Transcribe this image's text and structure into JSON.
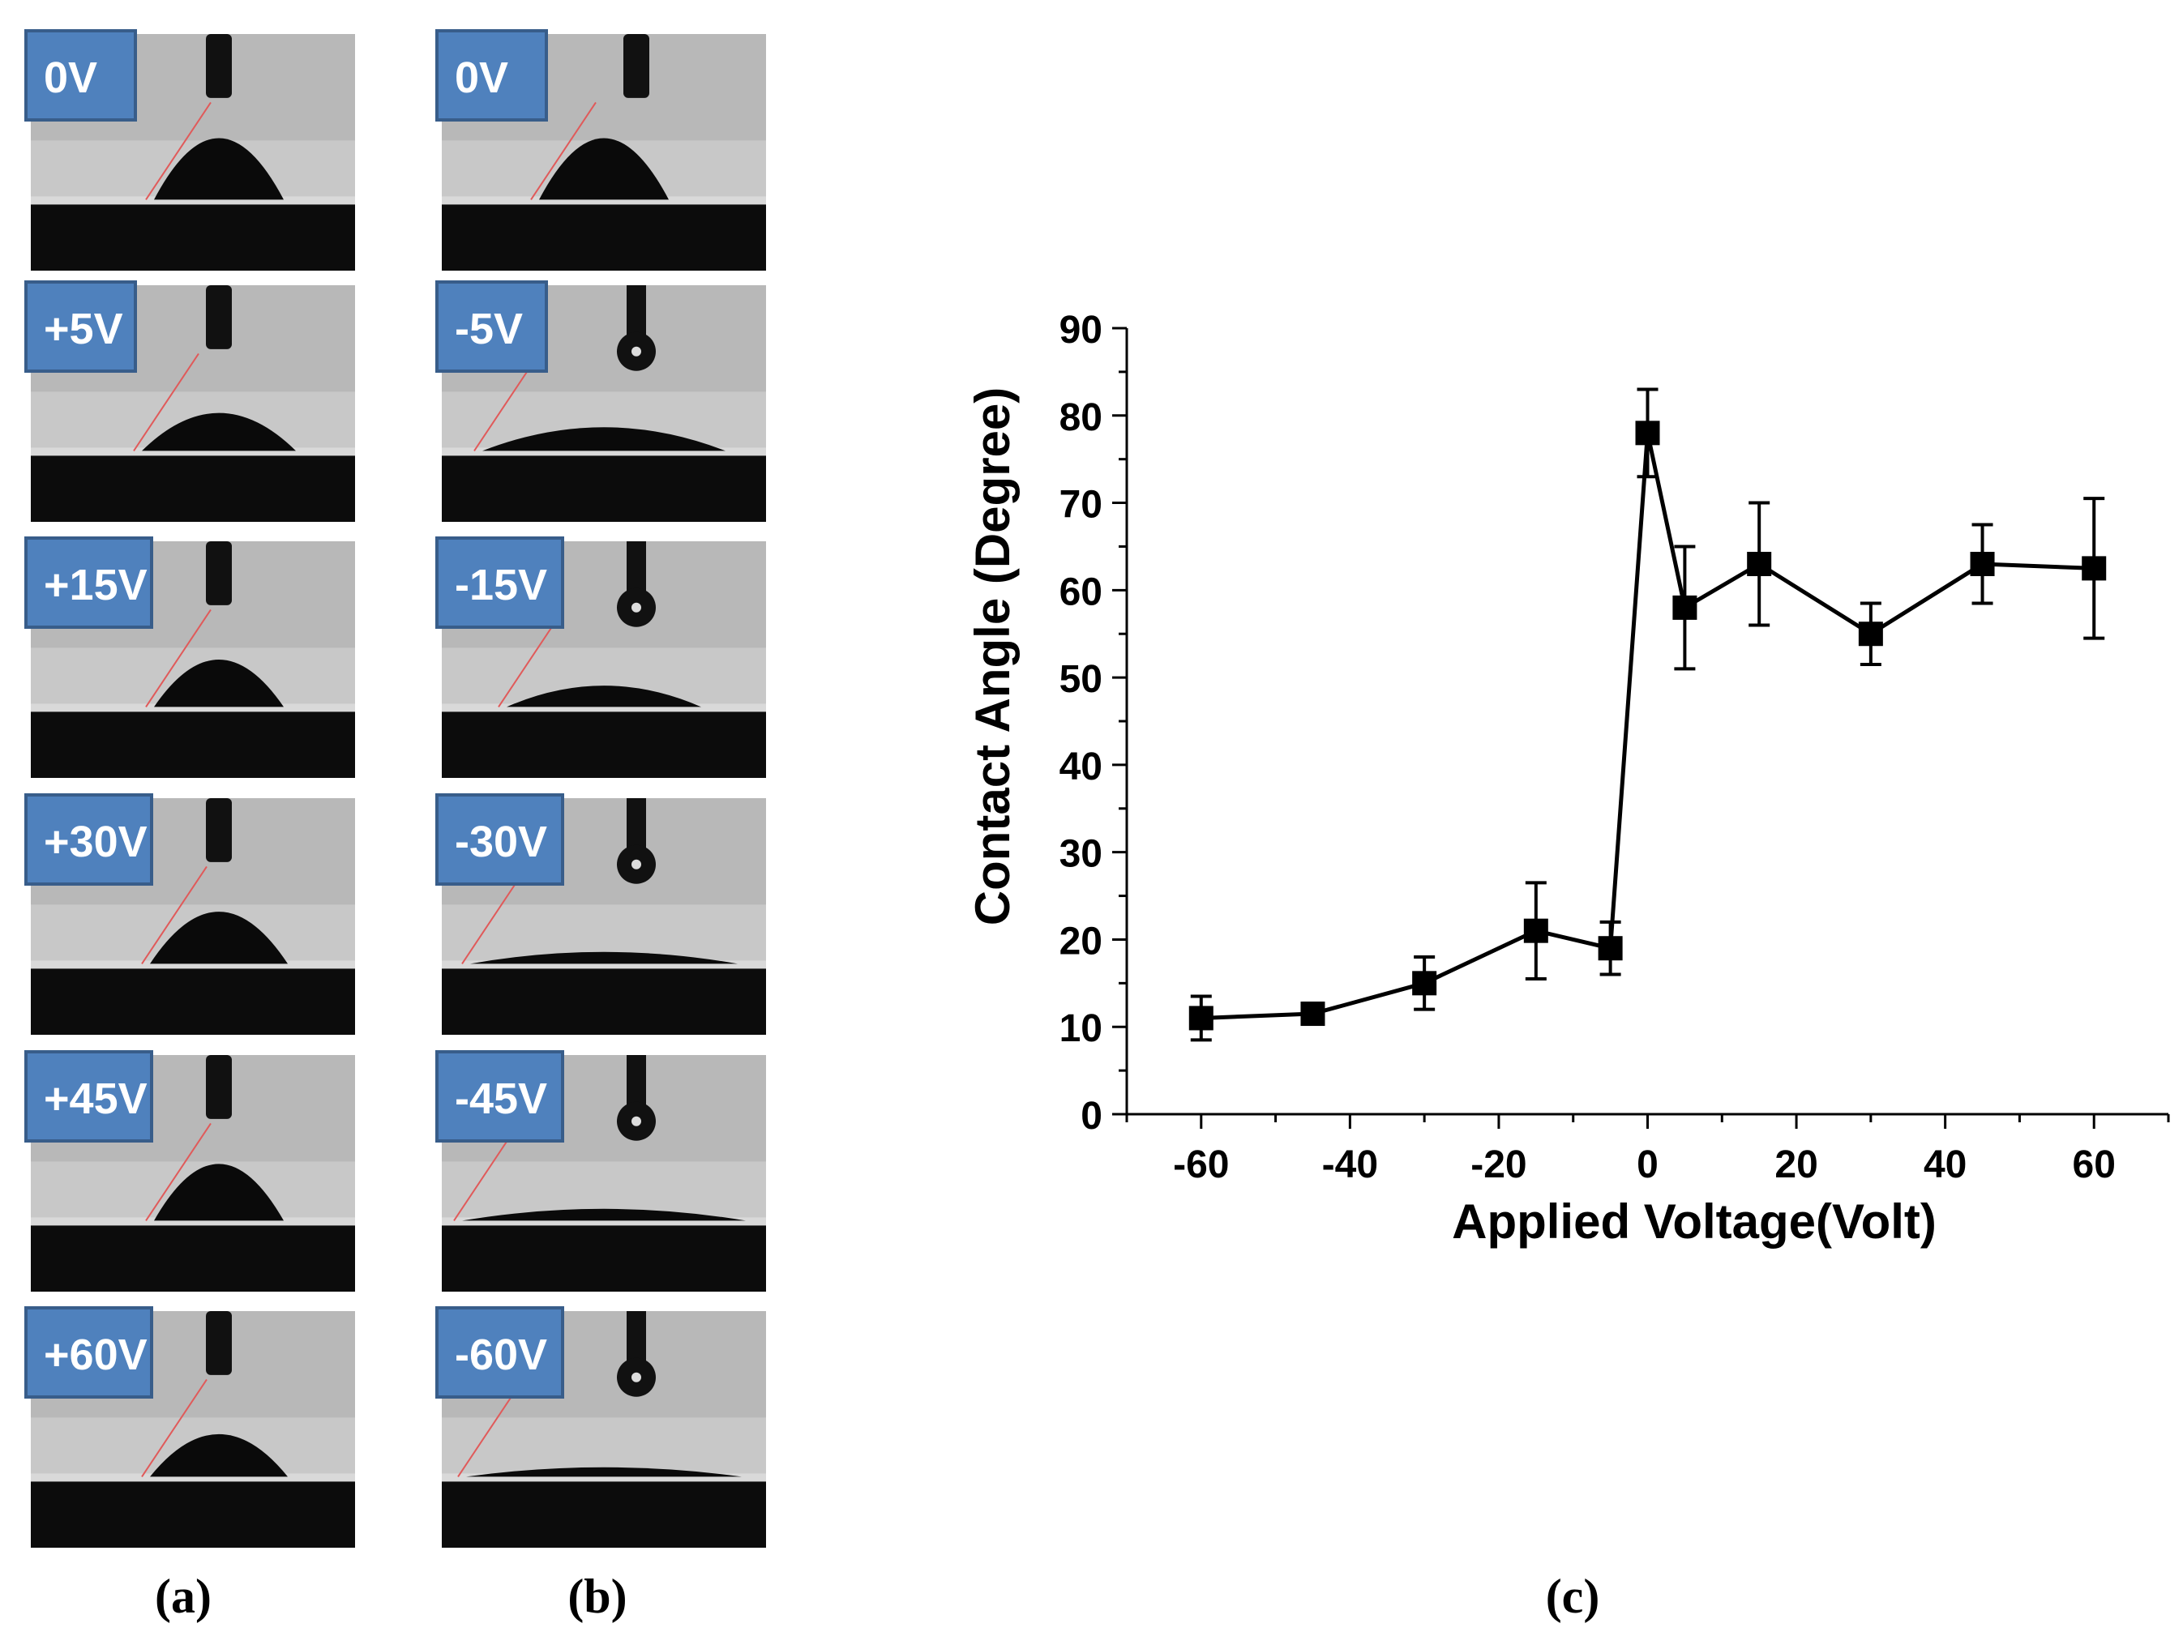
{
  "panel_a": {
    "caption": "(a)",
    "labels": [
      "0V",
      "+5V",
      "+15V",
      "+30V",
      "+45V",
      "+60V"
    ]
  },
  "panel_b": {
    "caption": "(b)",
    "labels": [
      "0V",
      "-5V",
      "-15V",
      "-30V",
      "-45V",
      "-60V"
    ]
  },
  "panel_c": {
    "caption": "(c)"
  },
  "chart_data": {
    "type": "line",
    "title": "",
    "xlabel": "Applied Voltage(Volt)",
    "ylabel": "Contact Angle (Degree)",
    "xlim": [
      -70,
      70
    ],
    "ylim": [
      0,
      90
    ],
    "xticks": [
      -60,
      -40,
      -20,
      0,
      20,
      40,
      60
    ],
    "yticks": [
      0,
      10,
      20,
      30,
      40,
      50,
      60,
      70,
      80,
      90
    ],
    "series": [
      {
        "name": "Contact Angle",
        "marker": "square",
        "color": "#000000",
        "x": [
          -60,
          -45,
          -30,
          -15,
          -5,
          0,
          5,
          15,
          30,
          45,
          60
        ],
        "y": [
          11,
          11.5,
          15,
          21,
          19,
          78,
          58,
          63,
          55,
          63,
          62.5
        ],
        "err": [
          2.5,
          1.2,
          3,
          5.5,
          3,
          5,
          7,
          7,
          3.5,
          4.5,
          8
        ]
      }
    ]
  },
  "colors": {
    "label_bg": "#4f81bd",
    "label_border": "#385d8a",
    "label_text": "#ffffff",
    "photo_bg": "#c8c8c8",
    "substrate": "#0c0c0c"
  }
}
